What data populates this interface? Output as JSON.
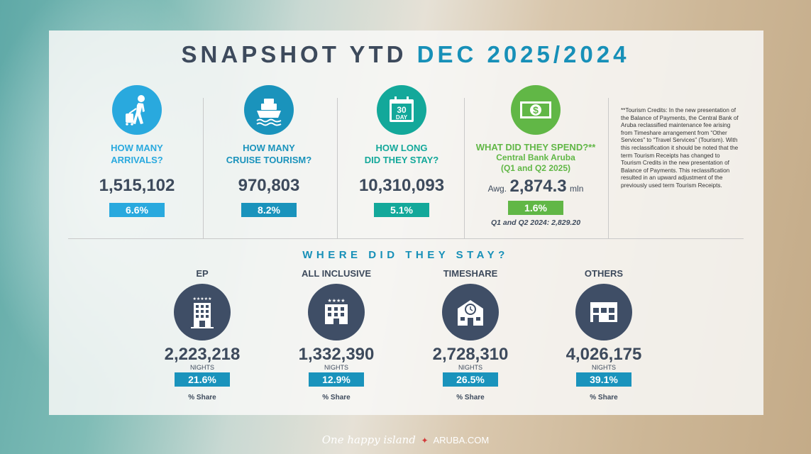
{
  "title": {
    "part1": "SNAPSHOT YTD",
    "part2": "DEC 2025/2024"
  },
  "colors": {
    "cyan": "#29a9de",
    "navy": "#1a93bc",
    "teal": "#13a89a",
    "green": "#61b746",
    "dark": "#3d4a5c"
  },
  "stats": [
    {
      "icon": "traveler-icon",
      "question_line1": "HOW MANY",
      "question_line2": "ARRIVALS?",
      "value": "1,515,102",
      "change": "6.6%"
    },
    {
      "icon": "cruise-ship-icon",
      "question_line1": "HOW MANY",
      "question_line2": "CRUISE TOURISM?",
      "value": "970,803",
      "change": "8.2%"
    },
    {
      "icon": "calendar-icon",
      "icon_text_top": "30",
      "icon_text_bottom": "DAY",
      "question_line1": "HOW LONG",
      "question_line2": "DID THEY STAY?",
      "value": "10,310,093",
      "change": "5.1%"
    },
    {
      "icon": "money-icon",
      "question_line1": "WHAT DID THEY SPEND?**",
      "question_line2": "Central Bank Aruba",
      "question_line3": "(Q1 and Q2 2025)",
      "value_prefix": "Awg.",
      "value": "2,874.3",
      "value_suffix": "mln",
      "change": "1.6%",
      "comparison": "Q1 and Q2 2024: 2,829.20"
    }
  ],
  "note": "**Tourism Credits: In the new presentation of the Balance of Payments, the Central Bank of Aruba reclassified maintenance fee arising from Timeshare arrangement from “Other Services” to “Travel Services” (Tourism). With this reclassification it should be noted that the term Tourism Receipts has changed to Tourism Credits in the new presentation of Balance of Payments. This reclassification resulted in an upward adjustment of the previously used term Tourism Receipts.",
  "stay": {
    "heading": "WHERE DID THEY STAY?",
    "items": [
      {
        "label": "EP",
        "value": "2,223,218",
        "unit": "NIGHTS",
        "share": "21.6%",
        "share_label": "% Share",
        "stars": "★★★★★"
      },
      {
        "label": "ALL INCLUSIVE",
        "value": "1,332,390",
        "unit": "NIGHTS",
        "share": "12.9%",
        "share_label": "% Share",
        "stars": "★★★★"
      },
      {
        "label": "TIMESHARE",
        "value": "2,728,310",
        "unit": "NIGHTS",
        "share": "26.5%",
        "share_label": "% Share"
      },
      {
        "label": "OTHERS",
        "value": "4,026,175",
        "unit": "NIGHTS",
        "share": "39.1%",
        "share_label": "% Share"
      }
    ]
  },
  "footer": {
    "script": "One happy island",
    "site": "ARUBA.COM"
  }
}
